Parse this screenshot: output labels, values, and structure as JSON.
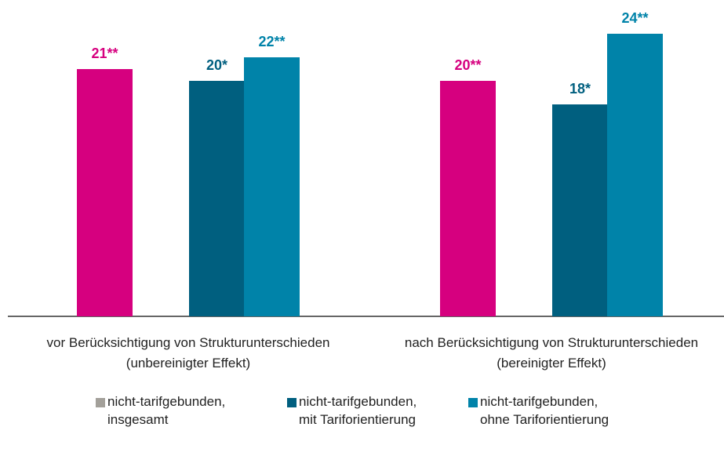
{
  "chart_data": {
    "type": "bar",
    "categories": [
      "vor Berücksichtigung von Strukturunterschieden\n(unbereinigter Effekt)",
      "nach Berücksichtigung von Strukturunterschieden\n(bereinigter Effekt)"
    ],
    "series": [
      {
        "name": "nicht-tarifgebunden,\ninsgesamt",
        "color": "#d6007f",
        "legend_color": "#a3a09a",
        "values": [
          21,
          20
        ],
        "value_labels": [
          "21**",
          "20**"
        ]
      },
      {
        "name": "nicht-tarifgebunden,\nmit Tariforientierung",
        "color": "#005f7f",
        "values": [
          20,
          18
        ],
        "value_labels": [
          "20*",
          "18*"
        ]
      },
      {
        "name": "nicht-tarifgebunden,\nohne Tariforientierung",
        "color": "#0083a9",
        "values": [
          22,
          24
        ],
        "value_labels": [
          "22**",
          "24**"
        ]
      }
    ],
    "ylim": [
      0,
      24
    ]
  }
}
